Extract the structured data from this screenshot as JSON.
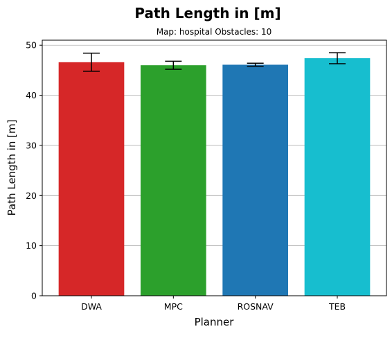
{
  "chart_data": {
    "type": "bar",
    "title": "Path Length in [m]",
    "subtitle": "Map: hospital Obstacles: 10",
    "xlabel": "Planner",
    "ylabel": "Path Length in [m]",
    "categories": [
      "DWA",
      "MPC",
      "ROSNAV",
      "TEB"
    ],
    "values": [
      46.6,
      46.0,
      46.1,
      47.4
    ],
    "errors": [
      1.8,
      0.8,
      0.3,
      1.1
    ],
    "colors": [
      "#d62728",
      "#2ca02c",
      "#1f77b4",
      "#17becf"
    ],
    "ylim": [
      0,
      51
    ],
    "yticks": [
      0,
      10,
      20,
      30,
      40,
      50
    ],
    "grid": "y"
  }
}
